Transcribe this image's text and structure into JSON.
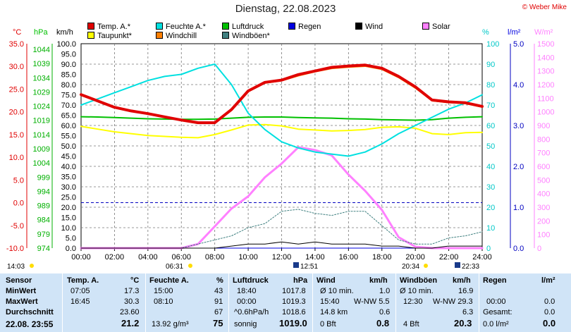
{
  "title": "Dienstag, 22.08.2023",
  "copyright": "© Weber Mike",
  "legend": [
    {
      "label": "Temp. A.*",
      "color": "#e00000"
    },
    {
      "label": "Feuchte A.*",
      "color": "#00e0e0"
    },
    {
      "label": "Luftdruck",
      "color": "#00c000"
    },
    {
      "label": "Regen",
      "color": "#0000e0"
    },
    {
      "label": "Wind",
      "color": "#000000"
    },
    {
      "label": "Solar",
      "color": "#ff80ff"
    },
    {
      "label": "Taupunkt*",
      "color": "#ffff00"
    },
    {
      "label": "Windchill",
      "color": "#ff8000"
    },
    {
      "label": "Windböen*",
      "color": "#408080"
    }
  ],
  "axis_units": {
    "temp": "°C",
    "pressure": "hPa",
    "wind": "km/h",
    "humidity": "%",
    "rain": "l/m²",
    "solar": "W/m²"
  },
  "axis_ticks": {
    "temp": [
      "35.0",
      "30.0",
      "25.0",
      "20.0",
      "15.0",
      "10.0",
      "5.0",
      "0.0",
      "-5.0",
      "-10.0"
    ],
    "pressure": [
      "1044",
      "1039",
      "1034",
      "1029",
      "1024",
      "1019",
      "1014",
      "1009",
      "1004",
      "999",
      "994",
      "989",
      "984",
      "979",
      "974"
    ],
    "wind": [
      "100.0",
      "95.0",
      "90.0",
      "85.0",
      "80.0",
      "75.0",
      "70.0",
      "65.0",
      "60.0",
      "55.0",
      "50.0",
      "45.0",
      "40.0",
      "35.0",
      "30.0",
      "25.0",
      "20.0",
      "15.0",
      "10.0",
      "5.0",
      "0.0"
    ],
    "humidity": [
      "100",
      "90",
      "80",
      "70",
      "60",
      "50",
      "40",
      "30",
      "20",
      "10",
      "0"
    ],
    "rain": [
      "5.0",
      "4.0",
      "3.0",
      "2.0",
      "1.0",
      "0.0"
    ],
    "solar": [
      "1500",
      "1400",
      "1300",
      "1200",
      "1100",
      "1000",
      "900",
      "800",
      "700",
      "600",
      "500",
      "400",
      "300",
      "200",
      "100",
      "0"
    ],
    "time": [
      "00:00",
      "02:00",
      "04:00",
      "06:00",
      "08:00",
      "10:00",
      "12:00",
      "14:00",
      "16:00",
      "18:00",
      "20:00",
      "22:00",
      "24:00"
    ]
  },
  "sun_moon": {
    "moonrise": "14:03",
    "sunrise": "06:31",
    "noon": "12:51",
    "sunset": "20:34",
    "moonset": "22:33"
  },
  "chart_data": {
    "type": "line",
    "x_label": "",
    "x_range": [
      "00:00",
      "24:00"
    ],
    "x_hours": [
      0,
      1,
      2,
      3,
      4,
      5,
      6,
      7,
      8,
      9,
      10,
      11,
      12,
      13,
      14,
      15,
      16,
      17,
      18,
      19,
      20,
      21,
      22,
      23,
      24
    ],
    "series": [
      {
        "name": "Temp. A.*",
        "axis": "temp",
        "color": "#e00000",
        "values": [
          23.8,
          22.4,
          21.0,
          20.2,
          19.6,
          18.9,
          18.2,
          17.6,
          17.6,
          20.5,
          24.6,
          26.5,
          27.0,
          28.2,
          29.0,
          29.8,
          30.1,
          30.3,
          29.6,
          27.8,
          25.5,
          22.6,
          22.2,
          22.0,
          21.2
        ]
      },
      {
        "name": "Feuchte A.*",
        "axis": "humidity",
        "color": "#00e0e0",
        "values": [
          70,
          73,
          76,
          79,
          82,
          84,
          85,
          88,
          90,
          80,
          66,
          58,
          52,
          49,
          47,
          46,
          45,
          47,
          51,
          56,
          60,
          64,
          68,
          71,
          75
        ]
      },
      {
        "name": "Luftdruck",
        "axis": "pressure",
        "color": "#00c000",
        "values": [
          1019.0,
          1018.9,
          1018.7,
          1018.5,
          1018.3,
          1018.2,
          1018.1,
          1018.1,
          1018.2,
          1018.5,
          1018.8,
          1018.9,
          1018.9,
          1018.7,
          1018.6,
          1018.5,
          1018.3,
          1018.2,
          1018.0,
          1017.9,
          1017.8,
          1018.0,
          1018.5,
          1018.8,
          1019.0
        ]
      },
      {
        "name": "Taupunkt*",
        "axis": "temp",
        "color": "#ffff00",
        "values": [
          16.8,
          16.2,
          15.6,
          15.2,
          14.8,
          14.6,
          14.4,
          14.3,
          15.0,
          16.0,
          17.1,
          17.2,
          16.9,
          16.2,
          16.0,
          15.8,
          15.9,
          16.1,
          16.6,
          16.7,
          16.4,
          15.2,
          15.0,
          15.4,
          15.5
        ]
      },
      {
        "name": "Windchill",
        "axis": "temp",
        "color": "#ff8000",
        "values": [
          23.6,
          22.3,
          20.9,
          20.1,
          19.5,
          18.8,
          18.1,
          17.5,
          17.5,
          20.4,
          24.4,
          26.3,
          26.8,
          27.9,
          28.8,
          29.5,
          29.8,
          30.0,
          29.3,
          27.5,
          25.2,
          22.4,
          22.0,
          21.8,
          21.0
        ]
      },
      {
        "name": "Wind",
        "axis": "wind",
        "color": "#000000",
        "values": [
          0,
          0,
          0,
          0,
          0,
          0,
          0,
          0,
          0,
          1,
          2,
          2,
          3,
          2,
          3,
          2,
          2,
          2,
          1,
          1,
          0,
          0,
          1,
          1,
          1
        ]
      },
      {
        "name": "Windböen*",
        "axis": "wind",
        "color": "#408080",
        "values": [
          0,
          0,
          0,
          0,
          0,
          0,
          0,
          2,
          4,
          6,
          10,
          12,
          18,
          19,
          17,
          16,
          18,
          18,
          11,
          4,
          2,
          2,
          5,
          6,
          8
        ]
      },
      {
        "name": "Solar",
        "axis": "solar",
        "color": "#ff80ff",
        "values": [
          0,
          0,
          0,
          0,
          0,
          0,
          0,
          30,
          160,
          290,
          380,
          520,
          620,
          740,
          720,
          680,
          540,
          420,
          280,
          80,
          10,
          0,
          0,
          0,
          0
        ]
      },
      {
        "name": "Regen",
        "axis": "rain",
        "color": "#0000e0",
        "values": [
          0,
          0,
          0,
          0,
          0,
          0,
          0,
          0,
          0,
          0,
          0,
          0,
          0,
          0,
          0,
          0,
          0,
          0,
          0,
          0,
          0,
          0,
          0,
          0,
          0
        ]
      }
    ],
    "axes": {
      "temp": {
        "ylim": [
          -10,
          35
        ]
      },
      "pressure": {
        "ylim": [
          974,
          1044
        ]
      },
      "wind": {
        "ylim": [
          0,
          100
        ]
      },
      "humidity": {
        "ylim": [
          0,
          100
        ]
      },
      "rain": {
        "ylim": [
          0,
          5
        ]
      },
      "solar": {
        "ylim": [
          0,
          1500
        ]
      }
    },
    "grid": true
  },
  "stats": {
    "row_labels": [
      "Sensor",
      "MinWert",
      "MaxWert",
      "Durchschnitt",
      "22.08. 23:55"
    ],
    "temp": {
      "header": "Temp. A.",
      "unit": "°C",
      "min_time": "07:05",
      "min": "17.3",
      "max_time": "16:45",
      "max": "30.3",
      "avg": "23.60",
      "current": "21.2"
    },
    "humidity": {
      "header": "Feuchte A.",
      "unit": "%",
      "min_time": "15:00",
      "min": "43",
      "max_time": "08:10",
      "max": "91",
      "avg": "67",
      "abs": "13.92 g/m³",
      "current": "75"
    },
    "pressure": {
      "header": "Luftdruck",
      "unit": "hPa",
      "min_time": "18:40",
      "min": "1017.8",
      "max_time": "00:00",
      "max": "1019.3",
      "trend": "^0.6hPa/h",
      "avg": "1018.6",
      "weather": "sonnig",
      "current": "1019.0"
    },
    "wind": {
      "header": "Wind",
      "unit": "km/h",
      "avg10_label": "Ø 10 min.",
      "avg10": "1.0",
      "max_time": "15:40",
      "max": "W-NW 5.5",
      "distance": "14.8 km",
      "avg": "0.6",
      "bft": "0 Bft",
      "current": "0.8"
    },
    "gusts": {
      "header": "Windböen",
      "unit": "km/h",
      "avg10_label": "Ø 10 min.",
      "avg10": "16.9",
      "max_time": "12:30",
      "max": "W-NW 29.3",
      "avg": "6.3",
      "bft": "4 Bft",
      "current": "20.3"
    },
    "rain": {
      "header": "Regen",
      "unit": "l/m²",
      "min_time": "00:00",
      "min": "0.0",
      "total_label": "Gesamt:",
      "total": "0.0",
      "rate": "0.0 l/m²",
      "current": "0.0"
    }
  }
}
